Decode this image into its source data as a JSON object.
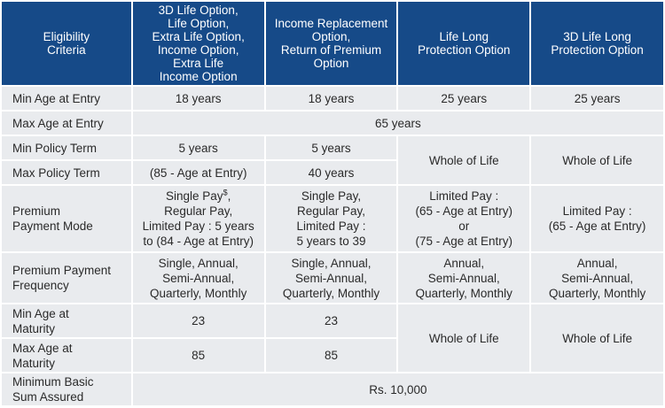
{
  "headers": [
    "Eligibility\nCriteria",
    "3D Life Option,\nLife Option,\nExtra Life Option,\nIncome Option,\nExtra Life\nIncome Option",
    "Income Replacement\nOption,\nReturn of Premium\nOption",
    "Life Long\nProtection Option",
    "3D Life Long\nProtection Option"
  ],
  "rows": {
    "min_age_entry": {
      "label": "Min Age at Entry",
      "c1": "18 years",
      "c2": "18 years",
      "c3": "25 years",
      "c4": "25 years"
    },
    "max_age_entry": {
      "label": "Max Age at Entry",
      "all": "65 years"
    },
    "min_policy_term": {
      "label": "Min Policy Term",
      "c1": "5 years",
      "c2": "5 years"
    },
    "max_policy_term": {
      "label": "Max Policy Term",
      "c1": "(85 - Age at Entry)",
      "c2": "40 years"
    },
    "policy_term_c3": "Whole of Life",
    "policy_term_c4": "Whole of Life",
    "premium_mode": {
      "label": "Premium\nPayment Mode",
      "c1_a": "Single Pay",
      "c1_sup": "$",
      "c1_b": ",\nRegular Pay,\nLimited Pay : 5 years\nto (84 - Age at Entry)",
      "c2": "Single Pay,\nRegular Pay,\nLimited Pay :\n5 years to 39",
      "c3": "Limited Pay :\n(65 - Age at Entry)\nor\n(75 - Age at Entry)",
      "c4": "Limited Pay :\n(65 - Age at Entry)"
    },
    "premium_freq": {
      "label": "Premium Payment\nFrequency",
      "c1": "Single, Annual,\nSemi-Annual,\nQuarterly, Monthly",
      "c2": "Single, Annual,\nSemi-Annual,\nQuarterly, Monthly",
      "c3": "Annual,\nSemi-Annual,\nQuarterly, Monthly",
      "c4": "Annual,\nSemi-Annual,\nQuarterly, Monthly"
    },
    "min_age_maturity": {
      "label": "Min Age at\nMaturity",
      "c1": "23",
      "c2": "23"
    },
    "max_age_maturity": {
      "label": "Max Age at\nMaturity",
      "c1": "85",
      "c2": "85"
    },
    "maturity_c3": "Whole of Life",
    "maturity_c4": "Whole of Life",
    "min_sum_assured": {
      "label": "Minimum Basic\nSum Assured",
      "all": "Rs. 10,000"
    }
  }
}
